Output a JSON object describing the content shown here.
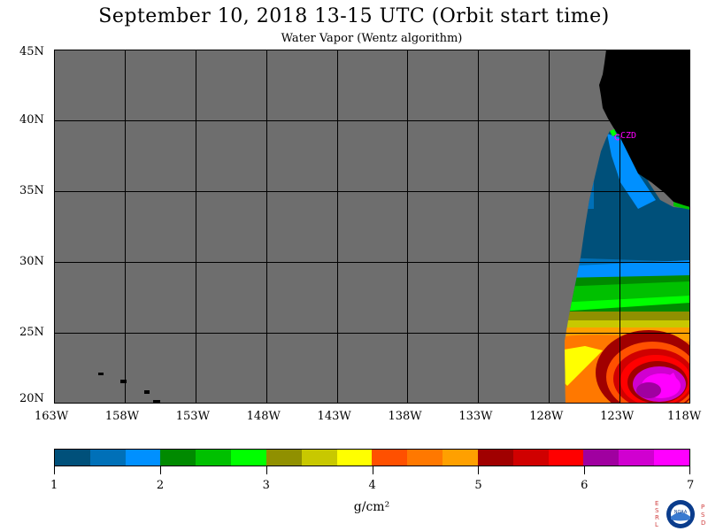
{
  "title": "September 10, 2018  13-15 UTC  (Orbit start time)",
  "subtitle": "Water Vapor (Wentz algorithm)",
  "map": {
    "lat_labels": [
      "45N",
      "40N",
      "35N",
      "30N",
      "25N",
      "20N"
    ],
    "lon_labels": [
      "163W",
      "158W",
      "153W",
      "148W",
      "143W",
      "138W",
      "133W",
      "128W",
      "123W",
      "118W"
    ],
    "station_label": "CZD",
    "lat_range": [
      20,
      45
    ],
    "lon_range": [
      -163,
      -118
    ],
    "colors": {
      "no_data": "#6e6e6e",
      "land": "#000000",
      "grid": "#000000",
      "station": "#ff00ff"
    }
  },
  "colorbar": {
    "tick_labels": [
      "1",
      "2",
      "3",
      "4",
      "5",
      "6",
      "7"
    ],
    "unit_label": "g/cm²",
    "colors": [
      "#00507a",
      "#0070b8",
      "#0090ff",
      "#008a00",
      "#00c000",
      "#00ff00",
      "#909000",
      "#c8c800",
      "#ffff00",
      "#ff5000",
      "#ff7800",
      "#ffa000",
      "#a00000",
      "#d00000",
      "#ff0000",
      "#a000a0",
      "#d000d0",
      "#ff00ff"
    ]
  },
  "logo": {
    "text": "NOAA",
    "left_letters": [
      "E",
      "S",
      "R",
      "L"
    ],
    "right_letters": [
      "P",
      "S",
      "D"
    ]
  }
}
